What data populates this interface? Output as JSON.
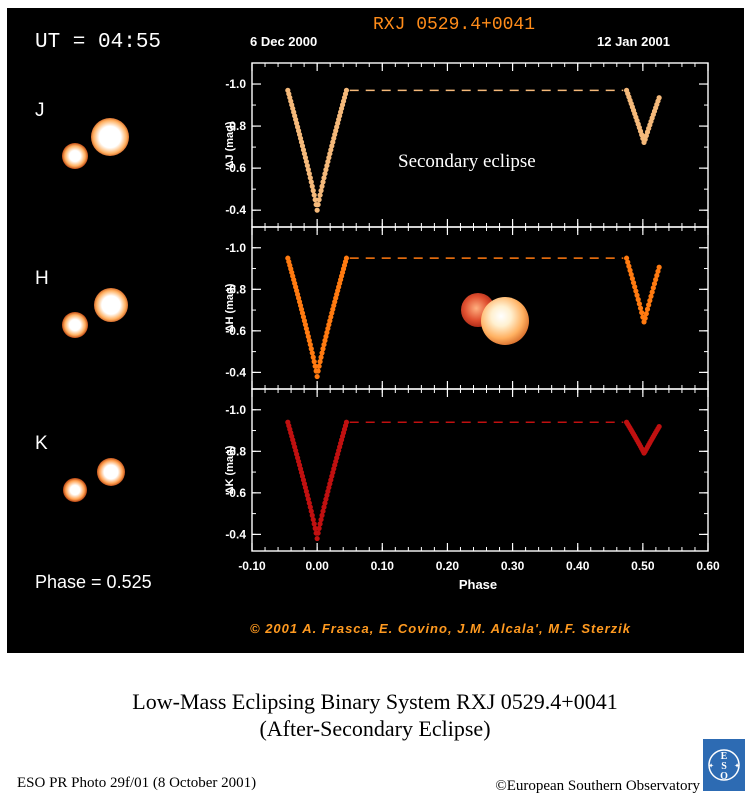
{
  "header": {
    "ut_label": "UT = 04:55",
    "date_start": "6 Dec 2000",
    "object_name": "RXJ 0529.4+0041",
    "date_end": "12 Jan 2001"
  },
  "bands": [
    {
      "label": "J",
      "ylabel": "ΔJ (mag)"
    },
    {
      "label": "H",
      "ylabel": "ΔH (mag)"
    },
    {
      "label": "K",
      "ylabel": "ΔK (mag)"
    }
  ],
  "phase_label": "Phase = 0.525",
  "annotation": "Secondary eclipse",
  "credit": "© 2001 A. Frasca, E. Covino, J.M. Alcala', M.F. Sterzik",
  "caption": {
    "title_line1": "Low-Mass Eclipsing Binary System RXJ 0529.4+0041",
    "title_line2": "(After-Secondary Eclipse)",
    "photo_id": "ESO PR Photo 29f/01 (8 October 2001)",
    "copyright": "©European Southern Observatory",
    "logo_text": "ESO"
  },
  "colors": {
    "J": "#f5b97a",
    "H": "#ff7a10",
    "K": "#c01010",
    "title": "#ff8c1a",
    "credit": "#ff9a20"
  },
  "chart_data": {
    "type": "scatter",
    "xlabel": "Phase",
    "xlim": [
      -0.1,
      0.6
    ],
    "x_ticks": [
      "-0.10",
      "0.00",
      "0.10",
      "0.20",
      "0.30",
      "0.40",
      "0.50",
      "0.60"
    ],
    "ylim": [
      -1.1,
      -0.32
    ],
    "y_ticks": [
      "-1.0",
      "-0.8",
      "-0.6",
      "-0.4"
    ],
    "reference_level": -0.97,
    "series": [
      {
        "band": "J",
        "primary_depth": -0.4,
        "secondary_depth": -0.72,
        "baseline": -0.97
      },
      {
        "band": "H",
        "primary_depth": -0.38,
        "secondary_depth": -0.64,
        "baseline": -0.95
      },
      {
        "band": "K",
        "primary_depth": -0.38,
        "secondary_depth": -0.79,
        "baseline": -0.94
      }
    ],
    "primary_eclipse_range": [
      -0.045,
      0.045
    ],
    "secondary_eclipse_range": [
      0.475,
      0.525
    ]
  }
}
